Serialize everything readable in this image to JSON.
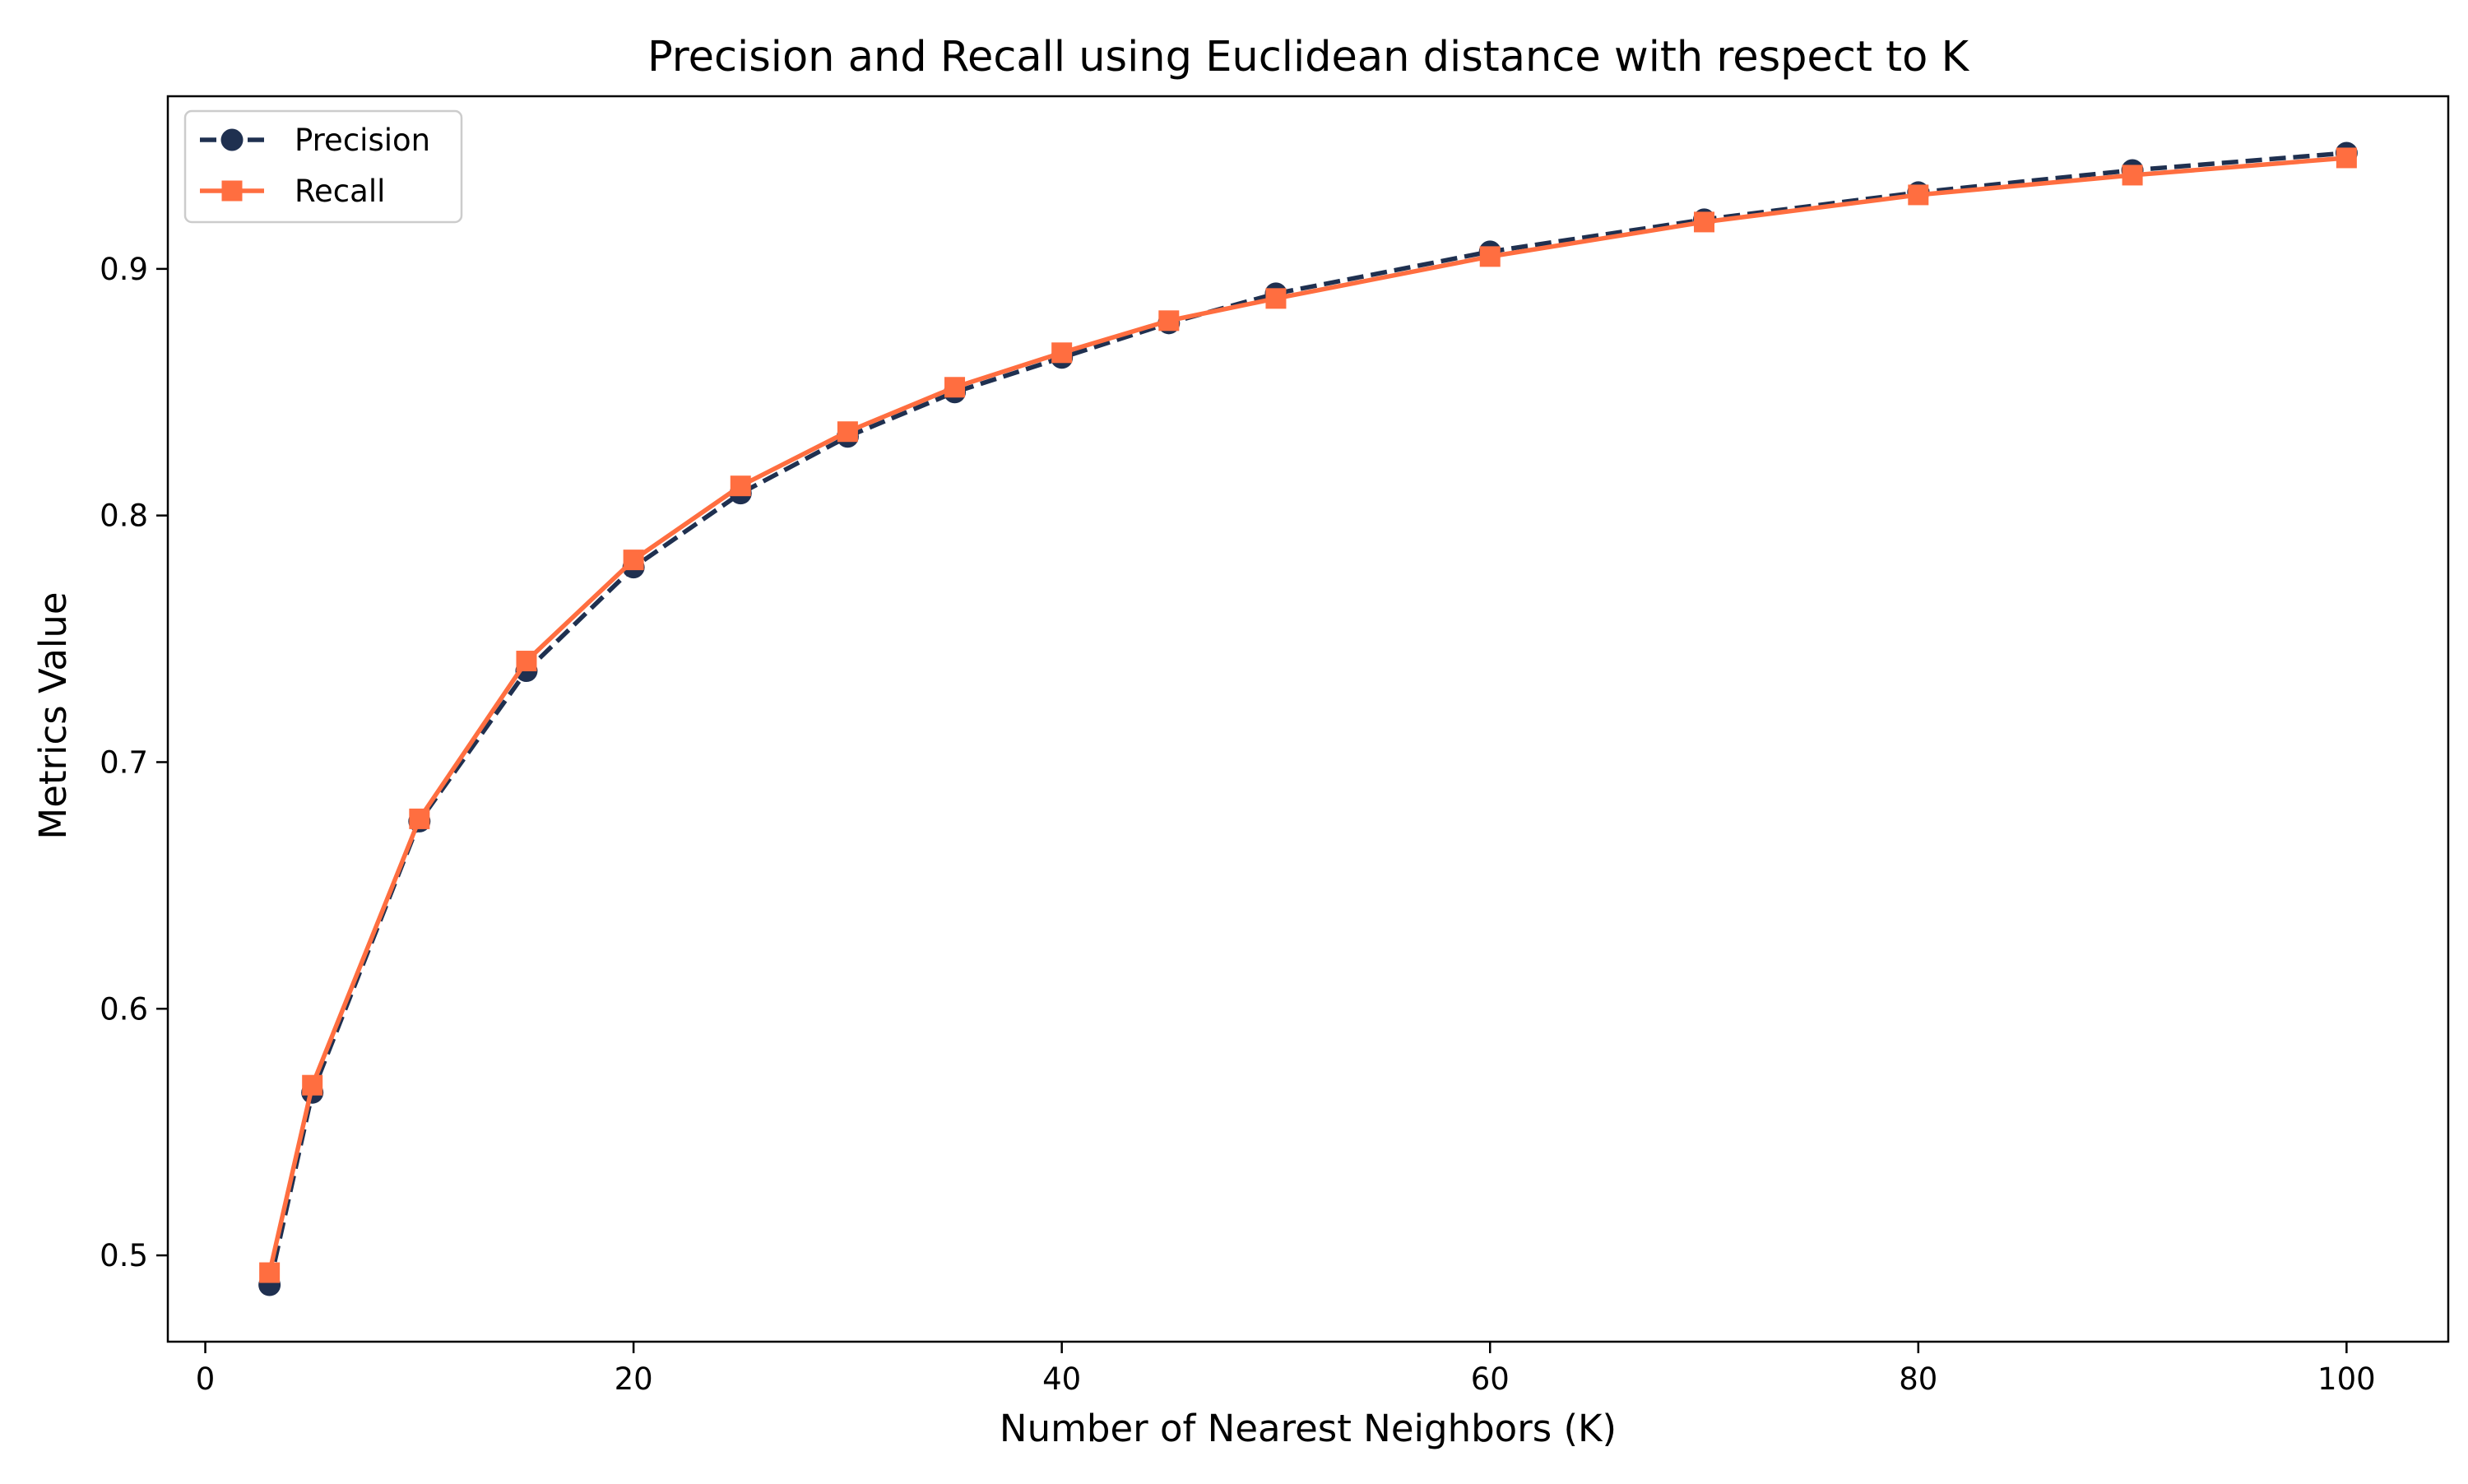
{
  "chart_data": {
    "type": "line",
    "title": "Precision and Recall using Euclidean distance with respect to K",
    "xlabel": "Number of Nearest Neighbors (K)",
    "ylabel": "Metrics Value",
    "xlim": [
      -1.75,
      104.75
    ],
    "ylim": [
      0.465,
      0.97
    ],
    "x_ticks": [
      0,
      20,
      40,
      60,
      80,
      100
    ],
    "x_tick_labels": [
      "0",
      "20",
      "40",
      "60",
      "80",
      "100"
    ],
    "y_ticks": [
      0.5,
      0.6,
      0.7,
      0.8,
      0.9
    ],
    "y_tick_labels": [
      "0.5",
      "0.6",
      "0.7",
      "0.8",
      "0.9"
    ],
    "grid": false,
    "legend_position": "top-left",
    "x": [
      3,
      5,
      10,
      15,
      20,
      25,
      30,
      35,
      40,
      45,
      50,
      60,
      70,
      80,
      90,
      100
    ],
    "series": [
      {
        "name": "Precision",
        "color": "#1f3050",
        "line_style": "dashed",
        "marker": "circle",
        "values": [
          0.488,
          0.566,
          0.676,
          0.737,
          0.779,
          0.809,
          0.832,
          0.85,
          0.864,
          0.878,
          0.89,
          0.907,
          0.92,
          0.931,
          0.94,
          0.947
        ]
      },
      {
        "name": "Recall",
        "color": "#ff6e40",
        "line_style": "solid",
        "marker": "square",
        "values": [
          0.493,
          0.569,
          0.677,
          0.741,
          0.782,
          0.812,
          0.834,
          0.852,
          0.866,
          0.879,
          0.888,
          0.905,
          0.919,
          0.93,
          0.938,
          0.945
        ]
      }
    ]
  }
}
